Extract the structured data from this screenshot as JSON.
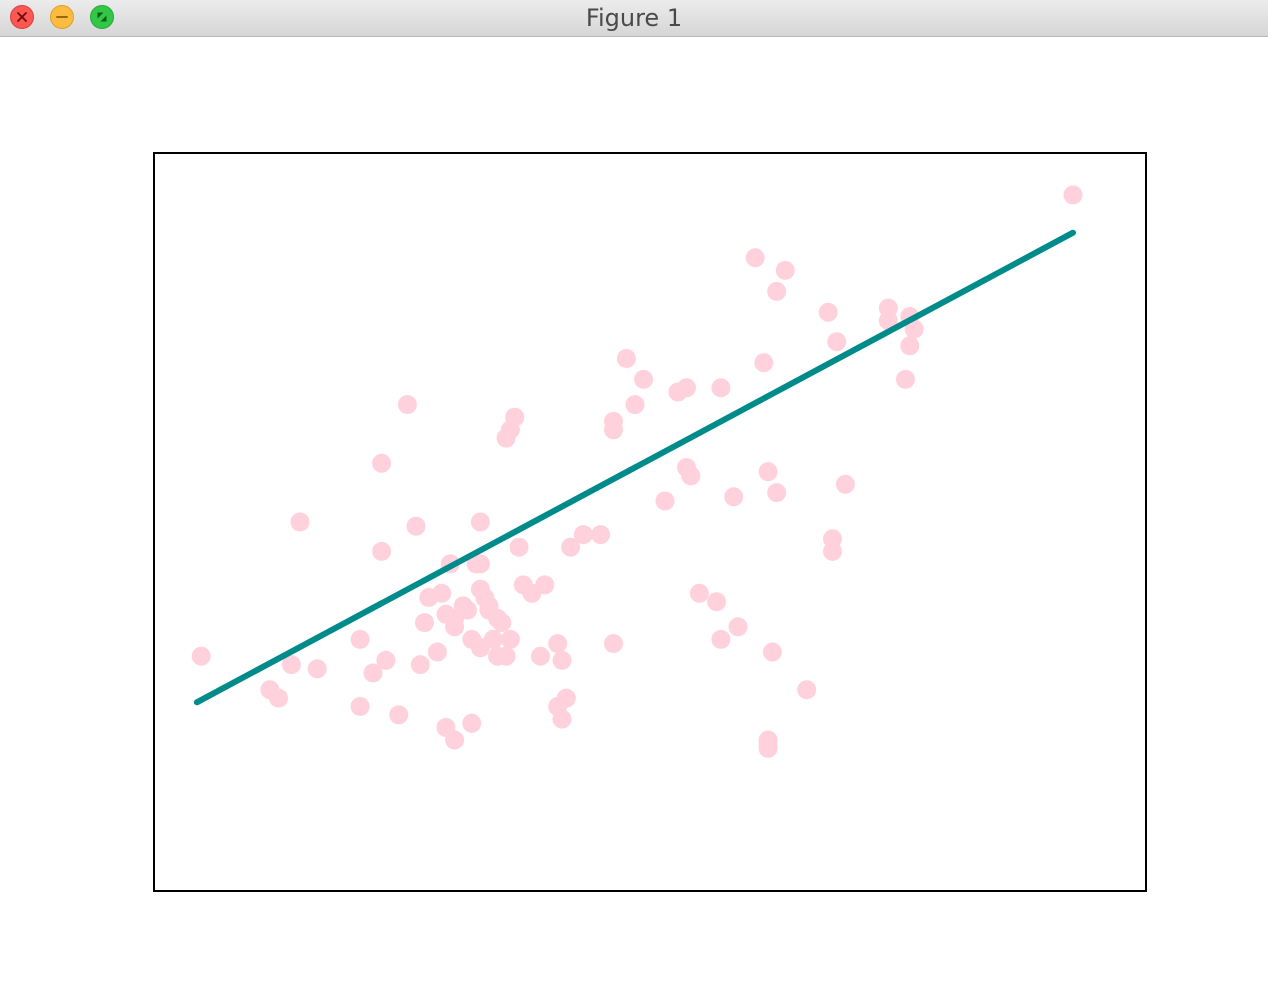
{
  "window": {
    "title": "Figure 1",
    "buttons": {
      "close": "close",
      "minimize": "minimize",
      "maximize": "maximize"
    }
  },
  "chart_data": {
    "type": "scatter",
    "title": "",
    "xlabel": "",
    "ylabel": "",
    "xlim": [
      -0.08,
      2.23
    ],
    "ylim": [
      -0.08,
      1.68
    ],
    "grid": false,
    "ticks_visible": false,
    "colors": {
      "points": "#ffd1dc",
      "line": "#008b8b",
      "frame": "#000000"
    },
    "points": {
      "x": [
        2.06,
        1.32,
        1.39,
        1.37,
        1.49,
        1.63,
        1.68,
        1.69,
        1.63,
        1.68,
        1.51,
        1.34,
        1.67,
        1.02,
        1.24,
        1.06,
        1.16,
        1.14,
        1.04,
        0.99,
        0.99,
        0.76,
        0.75,
        0.74,
        0.51,
        0.45,
        1.16,
        1.17,
        1.37,
        1.27,
        1.53,
        0.89,
        1.11,
        1.35,
        1.5,
        1.5,
        0.26,
        0.68,
        0.92,
        0.45,
        0.77,
        0.53,
        0.61,
        0.67,
        0.83,
        0.96,
        0.56,
        0.59,
        0.68,
        0.78,
        0.8,
        0.64,
        0.68,
        0.55,
        0.6,
        0.65,
        0.7,
        0.69,
        0.68,
        0.72,
        0.7,
        0.66,
        0.73,
        0.71,
        0.62,
        0.72,
        0.74,
        0.58,
        0.62,
        0.75,
        0.82,
        0.86,
        0.99,
        0.4,
        0.43,
        0.46,
        0.54,
        0.87,
        0.88,
        0.87,
        1.35,
        1.35,
        1.35,
        1.44,
        0.03,
        0.3,
        0.21,
        0.24,
        0.19,
        0.49,
        0.4,
        0.6,
        0.62,
        0.66,
        1.23,
        1.28,
        1.19,
        1.24,
        1.36,
        0.86
      ],
      "y": [
        1.58,
        1.43,
        1.4,
        1.35,
        1.3,
        1.31,
        1.29,
        1.26,
        1.28,
        1.22,
        1.23,
        1.18,
        1.14,
        1.19,
        1.12,
        1.14,
        1.12,
        1.11,
        1.08,
        1.04,
        1.02,
        1.05,
        1.02,
        1.0,
        1.08,
        0.94,
        0.93,
        0.91,
        0.87,
        0.86,
        0.89,
        0.74,
        0.85,
        0.92,
        0.76,
        0.73,
        0.8,
        0.8,
        0.77,
        0.73,
        0.74,
        0.79,
        0.7,
        0.7,
        0.65,
        0.77,
        0.62,
        0.63,
        0.7,
        0.65,
        0.63,
        0.6,
        0.64,
        0.56,
        0.58,
        0.59,
        0.6,
        0.62,
        0.5,
        0.57,
        0.59,
        0.52,
        0.56,
        0.52,
        0.55,
        0.48,
        0.48,
        0.49,
        0.57,
        0.52,
        0.48,
        0.51,
        0.51,
        0.52,
        0.44,
        0.47,
        0.46,
        0.47,
        0.38,
        0.33,
        0.28,
        0.26,
        0.27,
        0.4,
        0.48,
        0.45,
        0.38,
        0.46,
        0.4,
        0.34,
        0.36,
        0.31,
        0.28,
        0.32,
        0.61,
        0.55,
        0.63,
        0.52,
        0.49,
        0.36
      ]
    },
    "line": {
      "x": [
        0.02,
        2.06
      ],
      "y": [
        0.37,
        1.49
      ]
    }
  }
}
